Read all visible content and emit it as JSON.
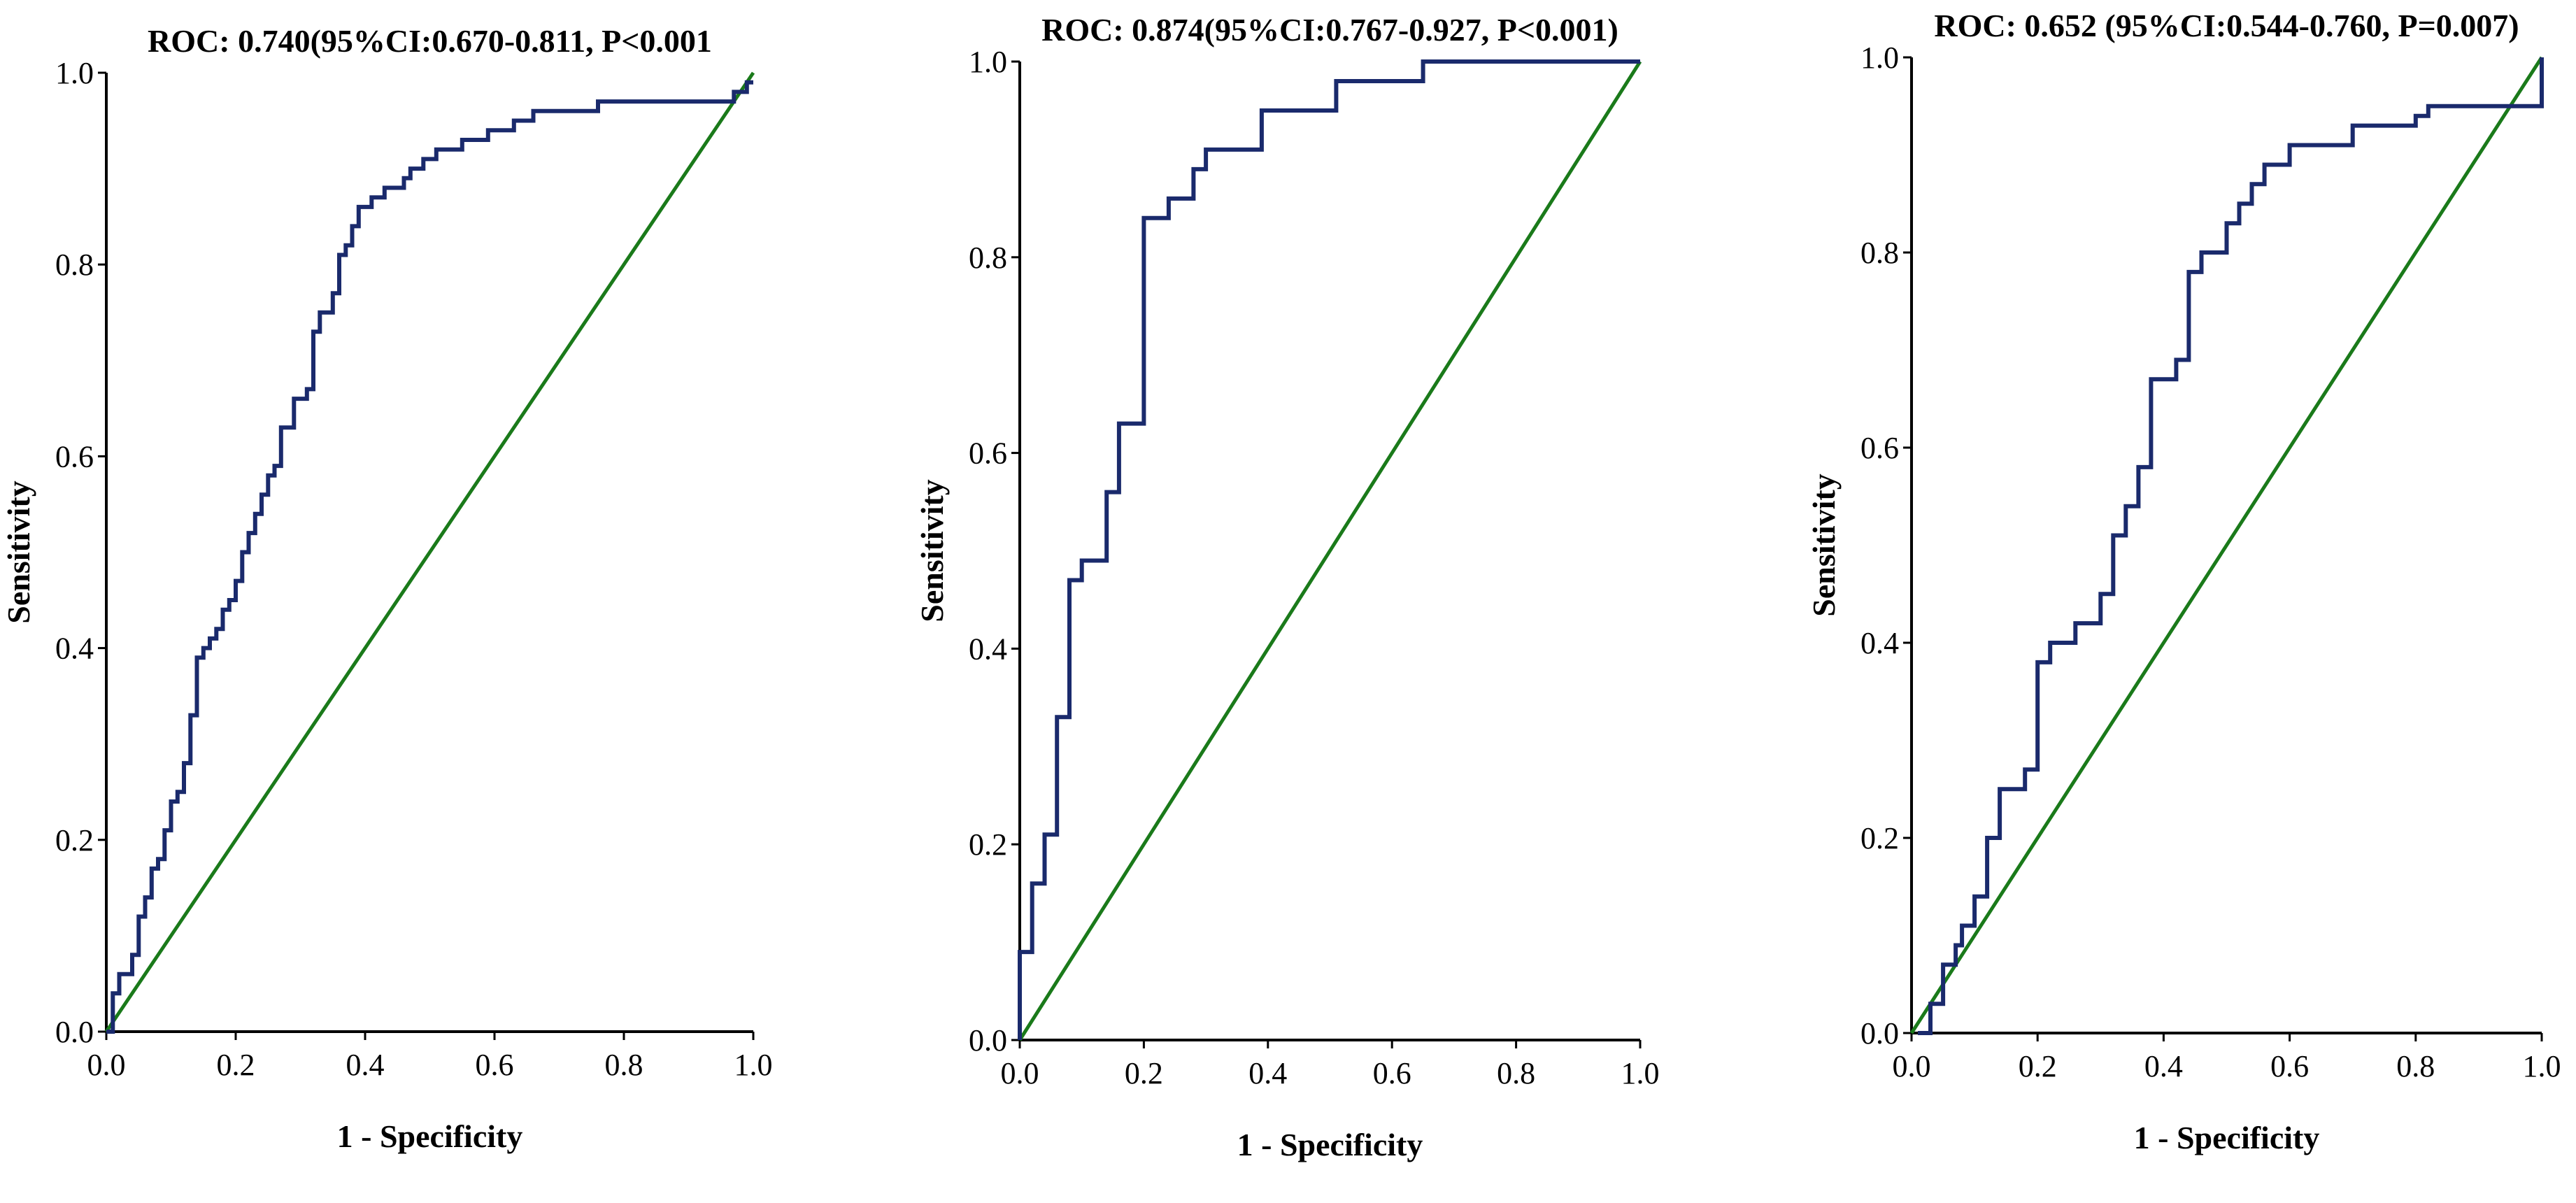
{
  "colors": {
    "roc": "#1a2a6c",
    "reference": "#1a7a1a"
  },
  "chart_data": [
    {
      "type": "line",
      "title": "ROC: 0.740(95%CI:0.670-0.811, P<0.001",
      "xlabel": "1 - Specificity",
      "ylabel": "Sensitivity",
      "xlim": [
        0,
        1
      ],
      "ylim": [
        0,
        1
      ],
      "xticks": [
        "0.0",
        "0.2",
        "0.4",
        "0.6",
        "0.8",
        "1.0"
      ],
      "yticks": [
        "0.0",
        "0.2",
        "0.4",
        "0.6",
        "0.8",
        "1.0"
      ],
      "series": [
        {
          "name": "ROC curve",
          "x": [
            0,
            0.01,
            0.01,
            0.02,
            0.02,
            0.04,
            0.04,
            0.05,
            0.05,
            0.06,
            0.06,
            0.07,
            0.07,
            0.08,
            0.08,
            0.09,
            0.09,
            0.1,
            0.1,
            0.11,
            0.11,
            0.12,
            0.12,
            0.13,
            0.13,
            0.14,
            0.14,
            0.15,
            0.15,
            0.16,
            0.16,
            0.17,
            0.17,
            0.18,
            0.18,
            0.19,
            0.19,
            0.2,
            0.2,
            0.21,
            0.21,
            0.22,
            0.22,
            0.23,
            0.23,
            0.24,
            0.24,
            0.25,
            0.25,
            0.26,
            0.26,
            0.27,
            0.27,
            0.29,
            0.29,
            0.31,
            0.31,
            0.32,
            0.32,
            0.33,
            0.33,
            0.35,
            0.35,
            0.36,
            0.36,
            0.37,
            0.37,
            0.38,
            0.38,
            0.39,
            0.39,
            0.41,
            0.41,
            0.43,
            0.43,
            0.46,
            0.46,
            0.47,
            0.47,
            0.49,
            0.49,
            0.51,
            0.51,
            0.55,
            0.55,
            0.59,
            0.59,
            0.63,
            0.63,
            0.66,
            0.66,
            0.76,
            0.76,
            0.97,
            0.97,
            0.99,
            0.99,
            1.0
          ],
          "y": [
            0,
            0,
            0.04,
            0.04,
            0.06,
            0.06,
            0.08,
            0.08,
            0.12,
            0.12,
            0.14,
            0.14,
            0.17,
            0.17,
            0.18,
            0.18,
            0.21,
            0.21,
            0.24,
            0.24,
            0.25,
            0.25,
            0.28,
            0.28,
            0.33,
            0.33,
            0.39,
            0.39,
            0.4,
            0.4,
            0.41,
            0.41,
            0.42,
            0.42,
            0.44,
            0.44,
            0.45,
            0.45,
            0.47,
            0.47,
            0.5,
            0.5,
            0.52,
            0.52,
            0.54,
            0.54,
            0.56,
            0.56,
            0.58,
            0.58,
            0.59,
            0.59,
            0.63,
            0.63,
            0.66,
            0.66,
            0.67,
            0.67,
            0.73,
            0.73,
            0.75,
            0.75,
            0.77,
            0.77,
            0.81,
            0.81,
            0.82,
            0.82,
            0.84,
            0.84,
            0.86,
            0.86,
            0.87,
            0.87,
            0.88,
            0.88,
            0.89,
            0.89,
            0.9,
            0.9,
            0.91,
            0.91,
            0.92,
            0.92,
            0.93,
            0.93,
            0.94,
            0.94,
            0.95,
            0.95,
            0.96,
            0.96,
            0.97,
            0.97,
            0.98,
            0.98,
            0.99,
            0.99
          ]
        },
        {
          "name": "Reference line",
          "x": [
            0,
            1
          ],
          "y": [
            0,
            1
          ]
        }
      ]
    },
    {
      "type": "line",
      "title": "ROC: 0.874(95%CI:0.767-0.927, P<0.001)",
      "xlabel": "1 - Specificity",
      "ylabel": "Sensitivity",
      "xlim": [
        0,
        1
      ],
      "ylim": [
        0,
        1
      ],
      "xticks": [
        "0.0",
        "0.2",
        "0.4",
        "0.6",
        "0.8",
        "1.0"
      ],
      "yticks": [
        "0.0",
        "0.2",
        "0.4",
        "0.6",
        "0.8",
        "1.0"
      ],
      "series": [
        {
          "name": "ROC curve",
          "x": [
            0,
            0,
            0.02,
            0.02,
            0.04,
            0.04,
            0.06,
            0.06,
            0.08,
            0.08,
            0.1,
            0.1,
            0.14,
            0.14,
            0.16,
            0.16,
            0.2,
            0.2,
            0.24,
            0.24,
            0.28,
            0.28,
            0.3,
            0.3,
            0.39,
            0.39,
            0.51,
            0.51,
            0.65,
            0.65,
            1.0
          ],
          "y": [
            0,
            0.09,
            0.09,
            0.16,
            0.16,
            0.21,
            0.21,
            0.33,
            0.33,
            0.47,
            0.47,
            0.49,
            0.49,
            0.56,
            0.56,
            0.63,
            0.63,
            0.84,
            0.84,
            0.86,
            0.86,
            0.89,
            0.89,
            0.91,
            0.91,
            0.95,
            0.95,
            0.98,
            0.98,
            1.0,
            1.0
          ]
        },
        {
          "name": "Reference line",
          "x": [
            0,
            1
          ],
          "y": [
            0,
            1
          ]
        }
      ]
    },
    {
      "type": "line",
      "title": "ROC: 0.652 (95%CI:0.544-0.760, P=0.007)",
      "xlabel": "1 - Specificity",
      "ylabel": "Sensitivity",
      "xlim": [
        0,
        1
      ],
      "ylim": [
        0,
        1
      ],
      "xticks": [
        "0.0",
        "0.2",
        "0.4",
        "0.6",
        "0.8",
        "1.0"
      ],
      "yticks": [
        "0.0",
        "0.2",
        "0.4",
        "0.6",
        "0.8",
        "1.0"
      ],
      "series": [
        {
          "name": "ROC curve",
          "x": [
            0.01,
            0.03,
            0.03,
            0.05,
            0.05,
            0.07,
            0.07,
            0.08,
            0.08,
            0.1,
            0.1,
            0.12,
            0.12,
            0.14,
            0.14,
            0.18,
            0.18,
            0.2,
            0.2,
            0.22,
            0.22,
            0.26,
            0.26,
            0.3,
            0.3,
            0.32,
            0.32,
            0.34,
            0.34,
            0.36,
            0.36,
            0.38,
            0.38,
            0.42,
            0.42,
            0.44,
            0.44,
            0.46,
            0.46,
            0.5,
            0.5,
            0.52,
            0.52,
            0.54,
            0.54,
            0.56,
            0.56,
            0.6,
            0.6,
            0.7,
            0.7,
            0.8,
            0.8,
            0.82,
            0.82,
            1.0,
            1.0
          ],
          "y": [
            0,
            0,
            0.03,
            0.03,
            0.07,
            0.07,
            0.09,
            0.09,
            0.11,
            0.11,
            0.14,
            0.14,
            0.2,
            0.2,
            0.25,
            0.25,
            0.27,
            0.27,
            0.38,
            0.38,
            0.4,
            0.4,
            0.42,
            0.42,
            0.45,
            0.45,
            0.51,
            0.51,
            0.54,
            0.54,
            0.58,
            0.58,
            0.67,
            0.67,
            0.69,
            0.69,
            0.78,
            0.78,
            0.8,
            0.8,
            0.83,
            0.83,
            0.85,
            0.85,
            0.87,
            0.87,
            0.89,
            0.89,
            0.91,
            0.91,
            0.93,
            0.93,
            0.94,
            0.94,
            0.95,
            0.95,
            1.0
          ]
        },
        {
          "name": "Reference line",
          "x": [
            0,
            1
          ],
          "y": [
            0,
            1
          ]
        }
      ]
    }
  ]
}
